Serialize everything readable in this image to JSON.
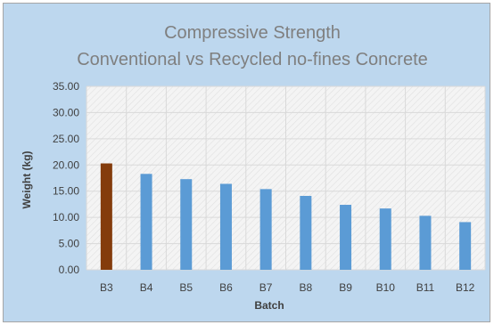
{
  "chart_data": {
    "type": "bar",
    "title": "Compressive Strength",
    "subtitle": "Conventional vs Recycled no-fines Concrete",
    "xlabel": "Batch",
    "ylabel": "Weight (kg)",
    "categories": [
      "B3",
      "B4",
      "B5",
      "B6",
      "B7",
      "B8",
      "B9",
      "B10",
      "B11",
      "B12"
    ],
    "values": [
      20.3,
      18.3,
      17.3,
      16.4,
      15.4,
      14.1,
      12.4,
      11.7,
      10.3,
      9.1
    ],
    "ylim": [
      0,
      35
    ],
    "yticks": [
      "0.00",
      "5.00",
      "10.00",
      "15.00",
      "20.00",
      "25.00",
      "30.00",
      "35.00"
    ],
    "grid": true,
    "bar_colors": [
      "#843c0c",
      "#5b9bd5",
      "#5b9bd5",
      "#5b9bd5",
      "#5b9bd5",
      "#5b9bd5",
      "#5b9bd5",
      "#5b9bd5",
      "#5b9bd5",
      "#5b9bd5"
    ],
    "colors": {
      "chart_background": "#bdd7ee",
      "plot_background": "#f2f2f2",
      "gridline": "#d9d9d9",
      "highlight_bar": "#843c0c",
      "bar": "#5b9bd5"
    }
  }
}
